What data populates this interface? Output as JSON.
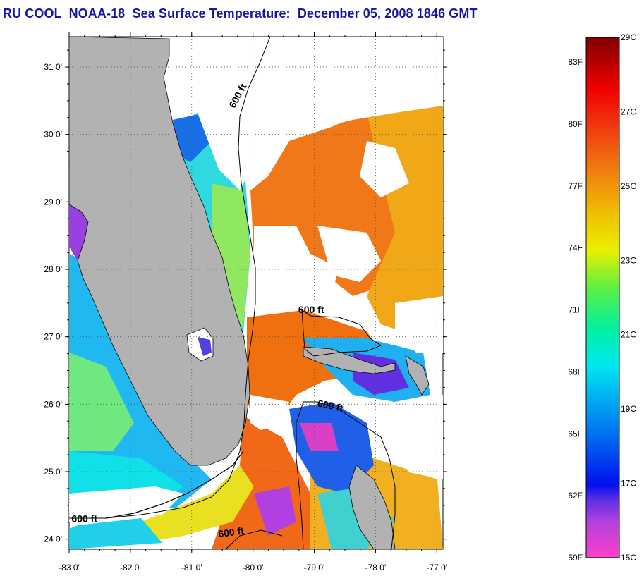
{
  "title": "RU COOL  NOAA-18  Sea Surface Temperature:  December 05, 2008 1846 GMT",
  "colors": {
    "land": "#b2b2b2",
    "missing": "#ffffff",
    "title": "#1616a8",
    "ramp": [
      "#ff40c8",
      "#b040e0",
      "#6030e0",
      "#0010f0",
      "#0070f0",
      "#00c8f0",
      "#00f0c8",
      "#40f040",
      "#f0f000",
      "#f0b000",
      "#f08010",
      "#f04010",
      "#f00000",
      "#800000"
    ]
  },
  "map": {
    "lon_range": [
      -83,
      -76.9
    ],
    "lat_range": [
      23.85,
      31.45
    ],
    "lat_ticks": [
      {
        "value": 31,
        "label": "31 0'"
      },
      {
        "value": 30,
        "label": "30 0'"
      },
      {
        "value": 29,
        "label": "29 0'"
      },
      {
        "value": 28,
        "label": "28 0'"
      },
      {
        "value": 27,
        "label": "27 0'"
      },
      {
        "value": 26,
        "label": "26 0'"
      },
      {
        "value": 25,
        "label": "25 0'"
      },
      {
        "value": 24,
        "label": "24 0'"
      }
    ],
    "lon_ticks": [
      {
        "value": -83,
        "label": "-83 0'"
      },
      {
        "value": -82,
        "label": "-82 0'"
      },
      {
        "value": -81,
        "label": "-81 0'"
      },
      {
        "value": -80,
        "label": "-80 0'"
      },
      {
        "value": -79,
        "label": "-79 0'"
      },
      {
        "value": -78,
        "label": "-78 0'"
      },
      {
        "value": -77,
        "label": "-77 0'"
      }
    ],
    "contour_labels": [
      {
        "text": "600 ft",
        "lon": -80.2,
        "lat": 30.55,
        "rotate": -62
      },
      {
        "text": "600 ft",
        "lon": -79.05,
        "lat": 27.35,
        "rotate": 0
      },
      {
        "text": "600 ft",
        "lon": -78.75,
        "lat": 25.93,
        "rotate": 12
      },
      {
        "text": "600 ft",
        "lon": -82.75,
        "lat": 24.25,
        "rotate": 0
      },
      {
        "text": "600 ft",
        "lon": -80.35,
        "lat": 24.05,
        "rotate": -8
      }
    ]
  },
  "colorbar": {
    "f_labels": [
      "83F",
      "80F",
      "77F",
      "74F",
      "71F",
      "68F",
      "65F",
      "62F",
      "59F"
    ],
    "c_labels": [
      "29C",
      "27C",
      "25C",
      "23C",
      "21C",
      "19C",
      "17C",
      "15C"
    ]
  }
}
